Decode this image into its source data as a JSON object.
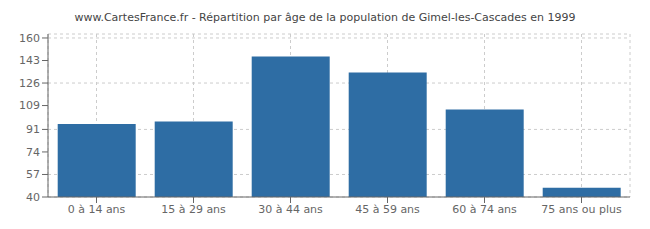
{
  "chart_data": {
    "type": "bar",
    "title": "www.CartesFrance.fr - Répartition par âge de la population de Gimel-les-Cascades en 1999",
    "categories": [
      "0 à 14 ans",
      "15 à 29 ans",
      "30 à 44 ans",
      "45 à 59 ans",
      "60 à 74 ans",
      "75 ans ou plus"
    ],
    "values": [
      95,
      97,
      146,
      134,
      106,
      47
    ],
    "color": "#2e6da4",
    "ylim": [
      40,
      163
    ],
    "yticks": [
      40,
      57,
      74,
      91,
      109,
      126,
      143,
      160
    ],
    "grid": true
  }
}
